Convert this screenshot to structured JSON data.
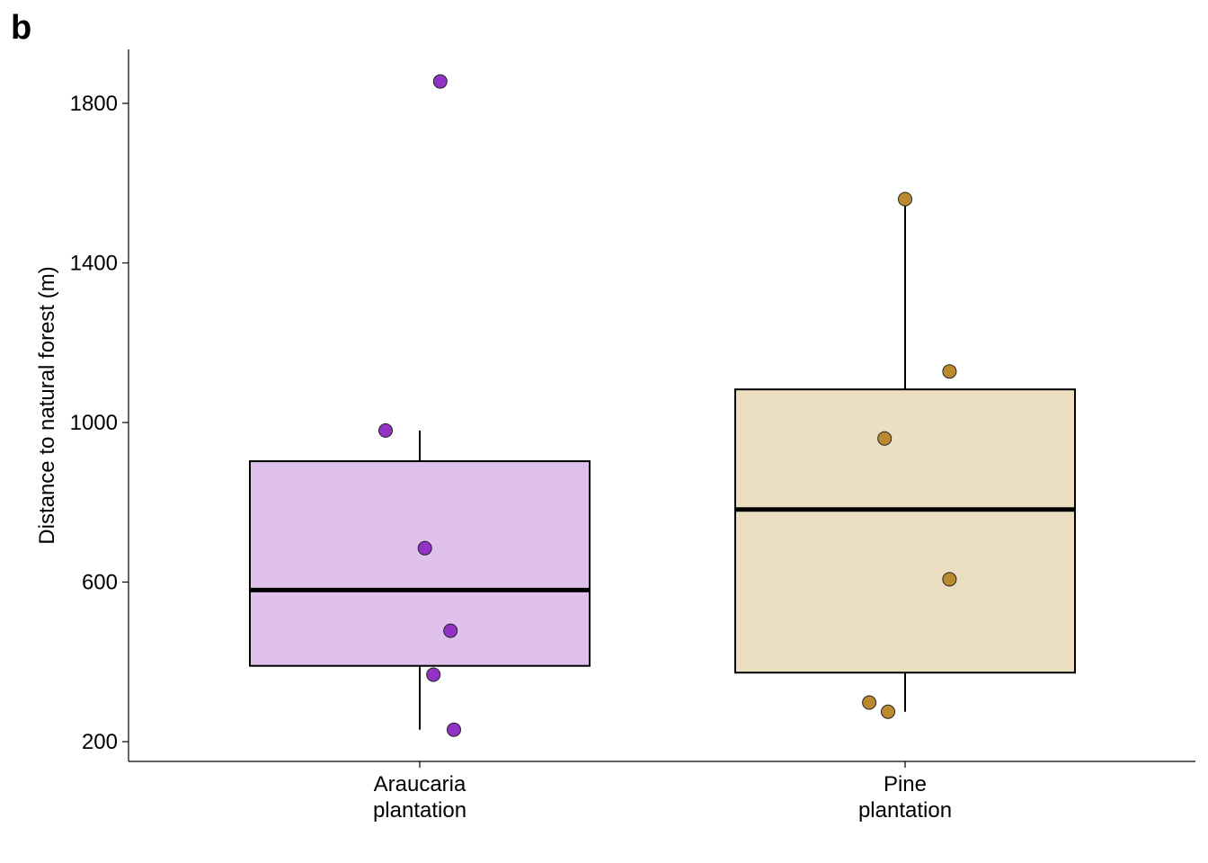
{
  "panel_label": "b",
  "chart_data": {
    "type": "box",
    "xlabel": "",
    "ylabel": "Distance to natural forest (m)",
    "ylim": [
      140,
      1930
    ],
    "yticks": [
      200,
      600,
      1000,
      1400,
      1800
    ],
    "grid": false,
    "legend": "none",
    "categories": [
      {
        "label_lines": [
          "Araucaria",
          "plantation"
        ],
        "fill": "#dfc1eb",
        "point_color": "#9233c6",
        "box": {
          "lower_whisker": 230,
          "q1": 390,
          "median": 580,
          "q3": 903,
          "upper_whisker": 980
        },
        "points": [
          1855,
          980,
          685,
          478,
          368,
          230
        ],
        "jitter": [
          0.12,
          -0.2,
          0.03,
          0.18,
          0.08,
          0.2
        ]
      },
      {
        "label_lines": [
          "Pine",
          "plantation"
        ],
        "fill": "#ecdec0",
        "point_color": "#bb8a30",
        "box": {
          "lower_whisker": 275,
          "q1": 373,
          "median": 782,
          "q3": 1083,
          "upper_whisker": 1560
        },
        "points": [
          1560,
          1128,
          960,
          607,
          298,
          275
        ],
        "jitter": [
          0,
          0.26,
          -0.12,
          0.26,
          -0.21,
          -0.1
        ]
      }
    ]
  }
}
